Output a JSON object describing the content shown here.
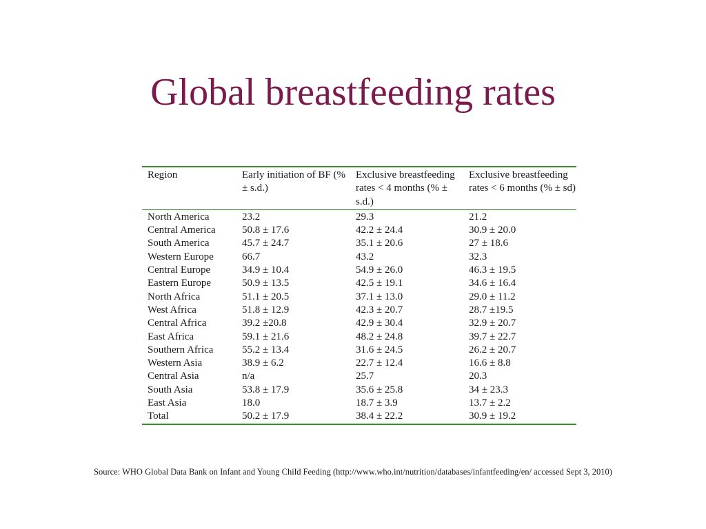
{
  "title": "Global breastfeeding rates",
  "table": {
    "headers": [
      "Region",
      "Early initiation of BF (% ± s.d.)",
      "Exclusive breastfeeding rates < 4 months (% ± s.d.)",
      "Exclusive breastfeeding rates < 6 months (% ± sd)"
    ],
    "rows": [
      [
        "North America",
        "23.2",
        "29.3",
        "21.2"
      ],
      [
        "Central America",
        "50.8 ± 17.6",
        "42.2 ± 24.4",
        "30.9 ± 20.0"
      ],
      [
        "South America",
        "45.7 ± 24.7",
        "35.1 ± 20.6",
        "27 ± 18.6"
      ],
      [
        "Western Europe",
        "66.7",
        "43.2",
        "32.3"
      ],
      [
        "Central Europe",
        "34.9 ± 10.4",
        "54.9 ± 26.0",
        "46.3 ± 19.5"
      ],
      [
        "Eastern Europe",
        "50.9 ± 13.5",
        "42.5 ± 19.1",
        "34.6 ± 16.4"
      ],
      [
        "North Africa",
        "51.1 ± 20.5",
        "37.1 ± 13.0",
        "29.0 ± 11.2"
      ],
      [
        "West Africa",
        "51.8 ± 12.9",
        "42.3 ± 20.7",
        "28.7 ±19.5"
      ],
      [
        "Central Africa",
        "39.2 ±20.8",
        "42.9 ± 30.4",
        "32.9 ± 20.7"
      ],
      [
        "East Africa",
        "59.1 ± 21.6",
        "48.2 ± 24.8",
        "39.7 ± 22.7"
      ],
      [
        "Southern Africa",
        "55.2 ± 13.4",
        "31.6 ± 24.5",
        "26.2 ± 20.7"
      ],
      [
        "Western Asia",
        "38.9 ± 6.2",
        "22.7 ± 12.4",
        "16.6 ± 8.8"
      ],
      [
        "Central Asia",
        "n/a",
        "25.7",
        "20.3"
      ],
      [
        "South Asia",
        "53.8 ± 17.9",
        "35.6 ± 25.8",
        "34 ± 23.3"
      ],
      [
        "East Asia",
        "18.0",
        "18.7 ± 3.9",
        "13.7 ± 2.2"
      ],
      [
        "Total",
        "50.2 ± 17.9",
        "38.4 ± 22.2",
        "30.9 ± 19.2"
      ]
    ]
  },
  "source": "Source: WHO Global Data Bank on Infant and Young Child Feeding (http://www.who.int/nutrition/databases/infantfeeding/en/ accessed Sept 3, 2010)",
  "colors": {
    "title": "#7b1b4c",
    "table_rule": "#3a8f2a",
    "text": "#1a1a1a"
  }
}
